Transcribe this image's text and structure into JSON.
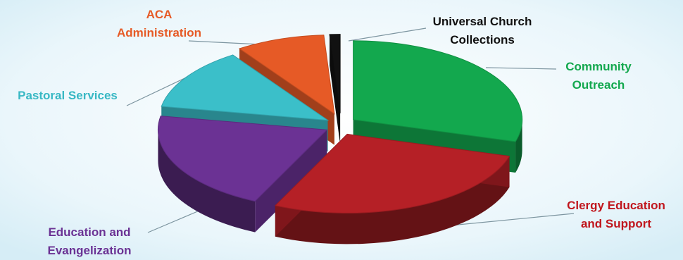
{
  "chart_data": {
    "type": "pie",
    "style": "3d-exploded",
    "title": "",
    "slices": [
      {
        "label": "Community Outreach",
        "lines": [
          "Community",
          "Outreach"
        ],
        "value": 29.5,
        "color": "#13a84e"
      },
      {
        "label": "Clergy Education and Support",
        "lines": [
          "Clergy Education",
          "and Support"
        ],
        "value": 27.5,
        "color": "#b52026"
      },
      {
        "label": "Education and Evangelization",
        "lines": [
          "Education and",
          "Evangelization"
        ],
        "value": 20.8,
        "color": "#6b3294"
      },
      {
        "label": "Pastoral Services",
        "lines": [
          "Pastoral Services"
        ],
        "value": 12.7,
        "color": "#3bbfc9"
      },
      {
        "label": "ACA Administration",
        "lines": [
          "ACA",
          "Administration"
        ],
        "value": 8.5,
        "color": "#e65a26"
      },
      {
        "label": "Universal Church Collections",
        "lines": [
          "Universal Church",
          "Collections"
        ],
        "value": 1.0,
        "color": "#111111"
      }
    ],
    "label_colors": {
      "Community Outreach": "#13a84e",
      "Clergy Education and Support": "#c0161d",
      "Education and Evangelization": "#6b3294",
      "Pastoral Services": "#38b8c4",
      "ACA Administration": "#e65a26",
      "Universal Church Collections": "#111111"
    },
    "legend": "none",
    "grid": false
  }
}
